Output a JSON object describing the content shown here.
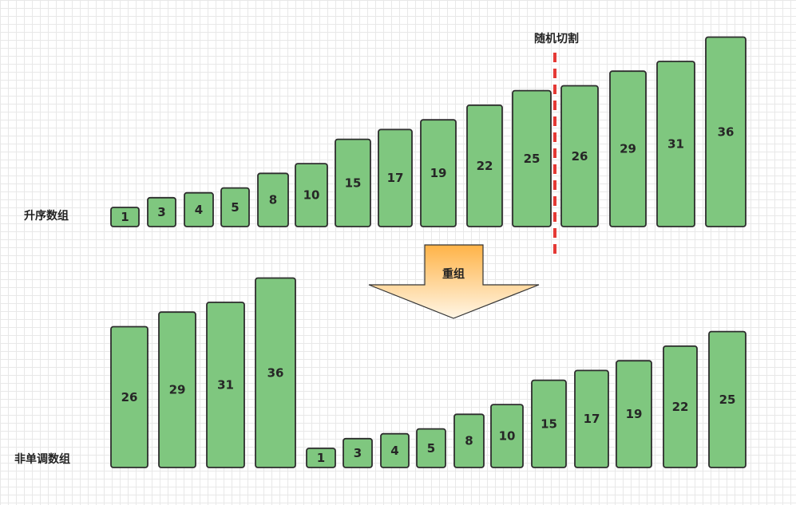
{
  "labels": {
    "top_row": "升序数组",
    "bottom_row": "非单调数组",
    "cut": "随机切割",
    "arrow": "重组"
  },
  "colors": {
    "bar_fill": "#7fc77f",
    "bar_stroke": "#2d2d2d",
    "cut_line": "#e53935",
    "arrow_top": "#ffb347",
    "arrow_bottom": "#fff6e6"
  },
  "top_array": [
    1,
    3,
    4,
    5,
    8,
    10,
    15,
    17,
    19,
    22,
    25,
    26,
    29,
    31,
    36
  ],
  "bottom_array": [
    26,
    29,
    31,
    36,
    1,
    3,
    4,
    5,
    8,
    10,
    15,
    17,
    19,
    22,
    25
  ]
}
